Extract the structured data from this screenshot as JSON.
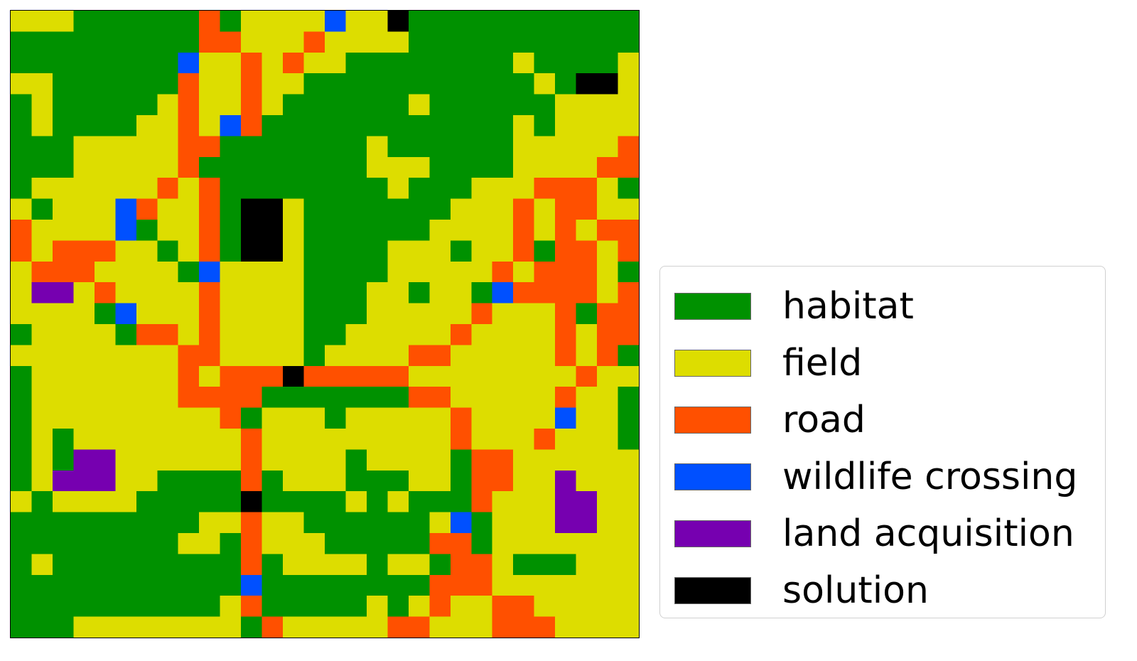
{
  "colors": {
    "habitat": "#009100",
    "field": "#dddd00",
    "road": "#ff5000",
    "wildlife_crossing": "#0050ff",
    "land_acquisition": "#7600b0",
    "solution": "#000000"
  },
  "legend": [
    {
      "key": "G",
      "label": "habitat",
      "color": "#009100"
    },
    {
      "key": "Y",
      "label": "field",
      "color": "#dddd00"
    },
    {
      "key": "R",
      "label": "road",
      "color": "#ff5000"
    },
    {
      "key": "B",
      "label": "wildlife crossing",
      "color": "#0050ff"
    },
    {
      "key": "P",
      "label": "land acquisition",
      "color": "#7600b0"
    },
    {
      "key": "K",
      "label": "solution",
      "color": "#000000"
    }
  ],
  "grid": {
    "rows": 30,
    "cols": 30,
    "cells": [
      "YYYGGGGGGRGYYYYBYYKGGGGGGGGGGG",
      "GGGGGGGGGRRYYYRYYYYGGGGGGGGGGG",
      "GGGGGGGGBYYRYRYYGGGGGGGGYGGGGY",
      "YYGGGGGGRYYRYYGGGGGGGGGGGYGKKY",
      "GYGGGGGYRYYRYGGGGGGYGGGGGGYYYY",
      "GYGGGGYYRYBRGGGGGGGGGGGGYGYYYY",
      "GGGYYYYYRRGGGGGGGYGGGGGGYYYYYR",
      "GGGYYYYYRGGGGGGGGYYYGGGGYYYYRR",
      "GYYYYYYRYRGGGGGGGGYGGGYYYRRRYG",
      "YGYYYBRYYRGKKYGGGGGGGYYYRYRRYY",
      "RYYYYBGYYRGKKYGGGGGGYYYYRYRYRR",
      "RYRRRYYGYRGKKYGGGGYYYGYYRGRRYR",
      "YRRRYYYYGBYYYYGGGGYYYYYRYRRRYG",
      "YPPYRYYYYRYYYYGGGYYGYYGBRRRRYR",
      "YYYYGBYYYRYYYYGGGYYYYYRYYYRGRR",
      "GYYYYGRRYRYYYYGGYYYYYRYYYYRYRR",
      "YYYYYYYYRRYYYYGYYYYRRYYYYYRYRG",
      "GYYYYYYYRYRRRKRRRRRYYYYYYYYRYY",
      "GYYYYYYYRRRRGGGGGGGRRYYYYYRYYG",
      "GYYYYYYYYYRGYYYGYYYYYRYYYYBYYG",
      "GYGYYYYYYYYRYYYYYYYYYRYYYRYYYG",
      "GYGPPYYYYYYRYYYYGYYYYGRRYYYYYY",
      "GYPPPYYGGGGRGYYYGGGYYGRRYYPYYY",
      "YGYYYYGGGGGKGGGGYGYGGGRYYYPPYY",
      "GGGGGGGGGYYRYYGGGGGGYBGYYYPPYY",
      "GGGGGGGGYYGRYYYGGGGGRRGYYYYYYY",
      "GYGGGGGGGGGRGYYYYGYYGRRYGGGYYY",
      "GGGGGGGGGGGBGGGGGGGGRRRYYYYYYY",
      "GGGGGGGGGGYRGGGGGYGYRYYRRYYYYY",
      "GGGYYYYYYYYGRYYYYYRRYYYRRRYYYY"
    ]
  }
}
